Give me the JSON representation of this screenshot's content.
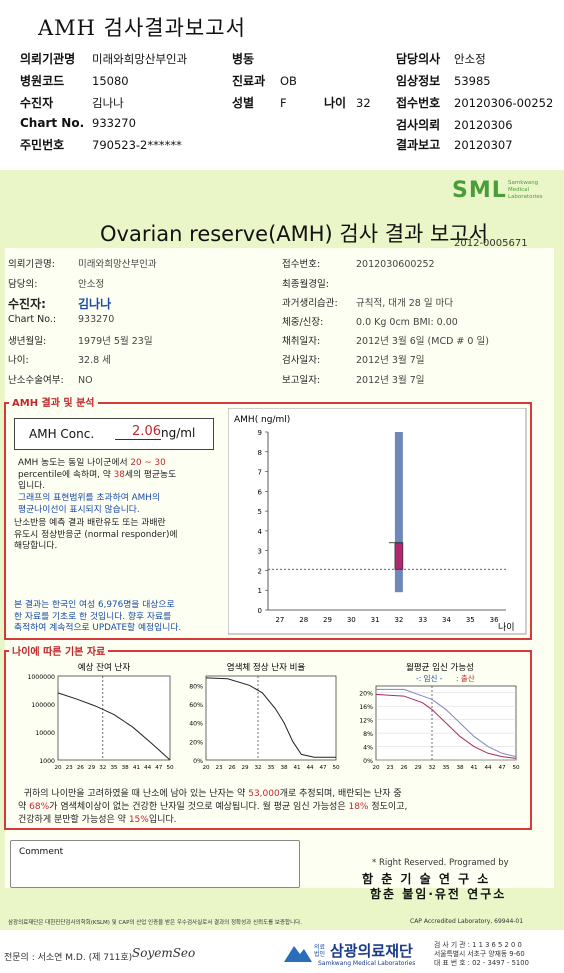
{
  "top": {
    "title": "AMH 검사결과보고서",
    "fields": [
      {
        "label": "의뢰기관명",
        "value": "미래와희망산부인과"
      },
      {
        "label": "병원코드",
        "value": "15080"
      },
      {
        "label": "수진자",
        "value": "김나나"
      },
      {
        "label": "Chart No.",
        "value": "933270"
      },
      {
        "label": "주민번호",
        "value": "790523-2******"
      }
    ],
    "mid_fields": [
      {
        "label": "병동",
        "value": ""
      },
      {
        "label": "진료과",
        "value": "OB"
      },
      {
        "label": "성별",
        "value": "F"
      }
    ],
    "age_label": "나이",
    "age_value": "32",
    "right_fields": [
      {
        "label": "담당의사",
        "value": "안소정"
      },
      {
        "label": "임상정보",
        "value": "53985"
      },
      {
        "label": "접수번호",
        "value": "20120306-00252"
      },
      {
        "label": "검사의뢰",
        "value": "20120306"
      },
      {
        "label": "결과보고",
        "value": "20120307"
      }
    ]
  },
  "sheet": {
    "brand": "SML",
    "brand_sub": [
      "Samkwang",
      "Medical",
      "Laboratories"
    ],
    "title": "Ovarian reserve(AMH) 검사 결과 보고서",
    "report_no": "2012-0005671",
    "left": [
      {
        "label": "의뢰기관명:",
        "value": "미래와희망산부인과"
      },
      {
        "label": "담당의:",
        "value": "안소정"
      },
      {
        "label": "수진자:",
        "value": "김나나"
      },
      {
        "label": "Chart No.:",
        "value": "933270"
      },
      {
        "label": "생년월일:",
        "value": "1979년 5월 23일"
      },
      {
        "label": "나이:",
        "value": "32.8 세"
      },
      {
        "label": "난소수술여부:",
        "value": "NO"
      }
    ],
    "right": [
      {
        "label": "접수번호:",
        "value": "2012030600252"
      },
      {
        "label": "최종월경일:",
        "value": ""
      },
      {
        "label": "과거생리습관:",
        "value": "규칙적, 대개  28 일 마다"
      },
      {
        "label": "체중/신장:",
        "value": "0.0 Kg       0cm   BMI:    0.00"
      },
      {
        "label": "채취일자:",
        "value": "2012년 3월 6일    (MCD #  0 일)"
      },
      {
        "label": "검사일자:",
        "value": "2012년 3월 7일"
      },
      {
        "label": "보고일자:",
        "value": "2012년 3월 7일"
      }
    ],
    "sec1_label": "AMH 결과 및 분석",
    "amh_label": "AMH Conc.",
    "amh_value": "2.06",
    "amh_unit": "ng/ml",
    "p1a": "AMH 농도는 동일 나이군에서",
    "p1b": "20 ~  30",
    "p1c": "percentile에 속하며, 약",
    "p1d": "38",
    "p1e": "세의 평균농도",
    "p1f": "입니다.",
    "p2": [
      "그래프의 표현범위를 초과하여 AMH의",
      "평균나이선이 표시되지 않습니다."
    ],
    "p3": [
      "난소반응 예측 결과 배란유도 또는 과배란",
      "유도시 정상반응군 (normal responder)에",
      "해당합니다."
    ],
    "p4": [
      "본 결과는 한국인 여성 6,976명을 대상으로",
      "한 자료를 기초로 한 것입니다. 향후 자료를",
      "축적하여 계속적으로 UPDATE할 예정입니다."
    ],
    "sec2_label": "나이에 따른 기본 자료",
    "c1_title": "예상 잔여 난자",
    "c2_title": "염색체 정상 난자 비율",
    "c3_title": "월평균 임신 가능성",
    "c3_legend_pre": "-: 임신 -",
    "c3_legend_post": ": 출산",
    "bottom_a": "귀하의 나이만을 고려하였을 때 난소에 남아 있는 난자는 약",
    "bottom_b": "53,000",
    "bottom_c": "개로 추정되며, 배란되는 난자 중",
    "bottom_d": "약",
    "bottom_e": "68%",
    "bottom_f": "가 염색체이상이 없는 건강한 난자일 것으로 예상됩니다. 월 평균 임신 가능성은",
    "bottom_g": "18%",
    "bottom_h": "정도이고,",
    "bottom_i": "건강하게 분만할 가능성은 약",
    "bottom_j": "15%",
    "bottom_k": "입니다.",
    "comment_label": "Comment",
    "rights": "* Right Reserved. Programed by",
    "org1": "함 춘 기 술 연 구 소",
    "org2": "함춘 불임·유전 연구소",
    "foot1": "삼광의료재단은 대한진단검사의학회(KSLM) 및 CAP의 산업 인증을 받은 우수검사실로서 결과의 정확성과 신뢰도를 보증합니다.",
    "foot2": "CAP  Accredited  Laboratory,  69944-01",
    "doctor": "전문의 : 서소연 M.D. (제 711호)",
    "signature": "SoyemSeo",
    "foundation": "삼광의료재단",
    "foundation_tag": "의료법인",
    "foundation_en": "Samkwang Medical Laboratories",
    "contact": [
      "검 사 기 관 : 1 1 3 6 5 2 0 0",
      "서울특별시 서초구 양재동 9-60",
      "대 표 번 호 : 02 - 3497 - 5100"
    ]
  },
  "chart_data": [
    {
      "type": "scatter",
      "title": "",
      "ylabel": "AMH( ng/ml)",
      "xlabel": "나이",
      "x_ticks": [
        27,
        28,
        29,
        30,
        31,
        32,
        33,
        34,
        35,
        36
      ],
      "y_ticks": [
        0,
        1,
        2,
        3,
        4,
        5,
        6,
        7,
        8,
        9
      ],
      "ylim": [
        0,
        9
      ],
      "xlim": [
        26.5,
        36.5
      ],
      "range_bar": {
        "x": 32,
        "low": 0.9,
        "high": 9
      },
      "value_box": {
        "x": 32,
        "low": 2.06,
        "high": 3.4
      },
      "reference_line": 2.06
    },
    {
      "type": "line",
      "title": "예상 잔여 난자",
      "y_log": true,
      "y_ticks": [
        1000,
        10000,
        100000,
        1000000
      ],
      "x_ticks": [
        20,
        23,
        26,
        29,
        32,
        35,
        38,
        41,
        44,
        47,
        50
      ],
      "marker_x": 32,
      "series": [
        {
          "x": [
            20,
            25,
            30,
            35,
            40,
            45,
            50
          ],
          "values": [
            250000,
            150000,
            85000,
            42000,
            15000,
            4000,
            1000
          ]
        }
      ]
    },
    {
      "type": "line",
      "title": "염색체 정상 난자 비율",
      "y_ticks": [
        "0%",
        "20%",
        "40%",
        "60%",
        "80%"
      ],
      "x_ticks": [
        20,
        23,
        26,
        29,
        32,
        35,
        38,
        41,
        44,
        47,
        50
      ],
      "marker_x": 32,
      "series": [
        {
          "x": [
            20,
            25,
            30,
            33,
            36,
            38,
            40,
            42,
            45,
            50
          ],
          "values": [
            88,
            87,
            80,
            72,
            55,
            40,
            20,
            6,
            3,
            3
          ]
        }
      ]
    },
    {
      "type": "line",
      "title": "월평균 임신 가능성",
      "y_ticks": [
        "0%",
        "4%",
        "8%",
        "12%",
        "16%",
        "20%"
      ],
      "x_ticks": [
        20,
        23,
        26,
        29,
        32,
        35,
        38,
        41,
        44,
        47,
        50
      ],
      "marker_x": 32,
      "series": [
        {
          "name": "임신",
          "x": [
            20,
            26,
            30,
            32,
            35,
            38,
            41,
            44,
            47,
            50
          ],
          "values": [
            21,
            21,
            19,
            18,
            15,
            11,
            7,
            4,
            2,
            1
          ]
        },
        {
          "name": "출산",
          "x": [
            20,
            26,
            30,
            32,
            35,
            38,
            41,
            44,
            47,
            50
          ],
          "values": [
            19.5,
            19,
            17,
            15,
            11,
            7,
            4,
            2,
            1,
            0.5
          ]
        }
      ]
    }
  ]
}
